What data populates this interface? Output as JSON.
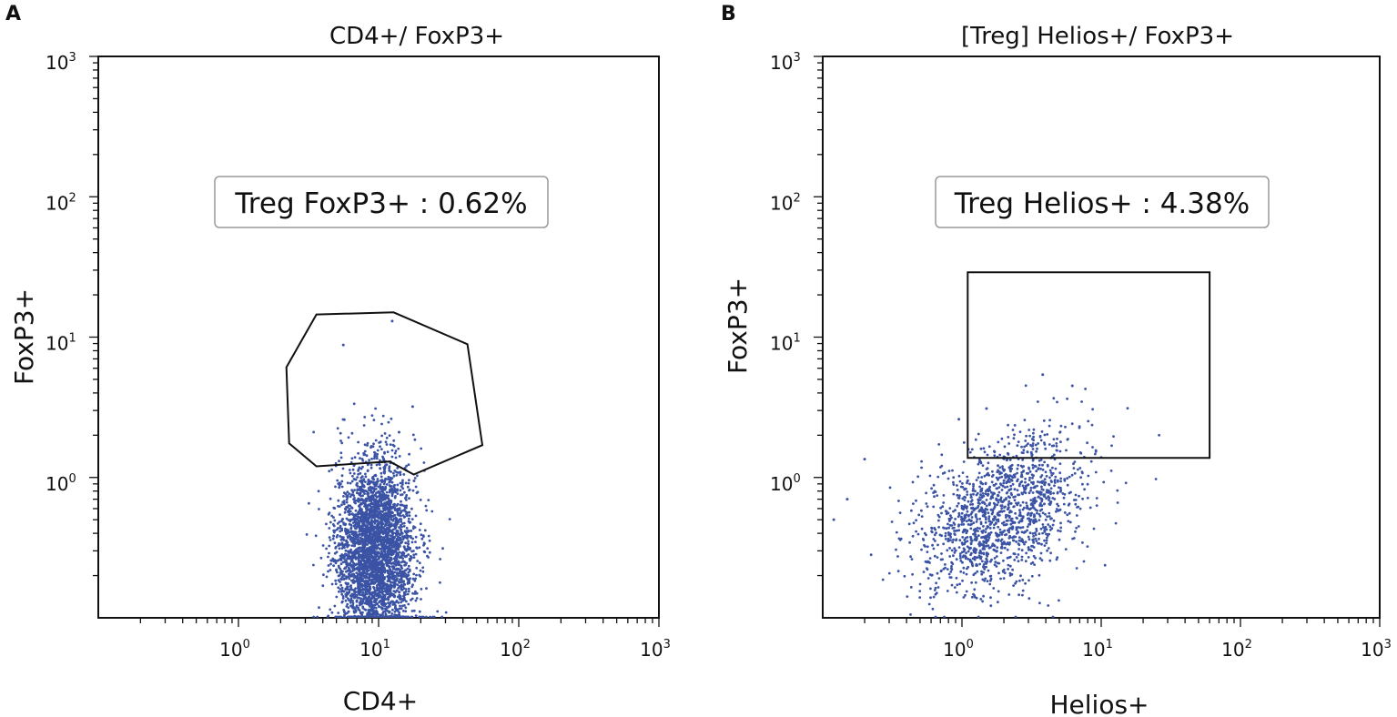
{
  "chart_data": [
    {
      "type": "scatter",
      "panel_label": "A",
      "title": "CD4+/ FoxP3+",
      "xlabel": "CD4+",
      "ylabel": "FoxP3+",
      "xscale": "log",
      "yscale": "log",
      "xlim": [
        0.1,
        1000
      ],
      "ylim": [
        0.1,
        1000
      ],
      "x_ticks": [
        {
          "base": "10",
          "exp": "0"
        },
        {
          "base": "10",
          "exp": "1"
        },
        {
          "base": "10",
          "exp": "2"
        },
        {
          "base": "10",
          "exp": "3"
        }
      ],
      "y_ticks": [
        {
          "base": "10",
          "exp": "0"
        },
        {
          "base": "10",
          "exp": "1"
        },
        {
          "base": "10",
          "exp": "2"
        },
        {
          "base": "10",
          "exp": "3"
        }
      ],
      "annotation": "Treg FoxP3+ : 0.62%",
      "point_color": "#3b53a4",
      "population": {
        "center_x": 9.5,
        "center_y": 0.3,
        "x_spread_log": 0.14,
        "y_spread_log": 0.32,
        "count": 3500
      },
      "outliers": [
        [
          5.6,
          8.8
        ],
        [
          12.5,
          13.0
        ],
        [
          17.5,
          3.2
        ],
        [
          14.0,
          2.1
        ]
      ],
      "gate": {
        "shape": "polygon",
        "points": [
          [
            3.6,
            14.5
          ],
          [
            12.8,
            15.0
          ],
          [
            43,
            8.9
          ],
          [
            55,
            1.7
          ],
          [
            17.8,
            1.05
          ],
          [
            12,
            1.3
          ],
          [
            3.6,
            1.2
          ],
          [
            2.3,
            1.75
          ],
          [
            2.2,
            6.1
          ]
        ]
      }
    },
    {
      "type": "scatter",
      "panel_label": "B",
      "title": "[Treg] Helios+/ FoxP3+",
      "xlabel": "Helios+",
      "ylabel": "FoxP3+",
      "xscale": "log",
      "yscale": "log",
      "xlim": [
        0.1,
        1000
      ],
      "ylim": [
        0.1,
        1000
      ],
      "x_ticks": [
        {
          "base": "10",
          "exp": "0"
        },
        {
          "base": "10",
          "exp": "1"
        },
        {
          "base": "10",
          "exp": "2"
        },
        {
          "base": "10",
          "exp": "3"
        }
      ],
      "y_ticks": [
        {
          "base": "10",
          "exp": "0"
        },
        {
          "base": "10",
          "exp": "1"
        },
        {
          "base": "10",
          "exp": "2"
        },
        {
          "base": "10",
          "exp": "3"
        }
      ],
      "annotation": "Treg Helios+ : 4.38%",
      "point_color": "#3b53a4",
      "population": {
        "center_x": 1.9,
        "center_y": 0.55,
        "x_spread_log": 0.3,
        "y_spread_log": 0.26,
        "count": 1500
      },
      "outliers": [
        [
          0.12,
          0.5
        ],
        [
          0.2,
          1.35
        ],
        [
          0.15,
          0.7
        ],
        [
          3.8,
          5.4
        ],
        [
          6.2,
          4.5
        ],
        [
          0.95,
          2.6
        ],
        [
          1.5,
          3.1
        ]
      ],
      "gate": {
        "shape": "rectangle",
        "points": [
          [
            1.1,
            29
          ],
          [
            60,
            29
          ],
          [
            60,
            1.38
          ],
          [
            1.1,
            1.38
          ]
        ]
      }
    }
  ]
}
